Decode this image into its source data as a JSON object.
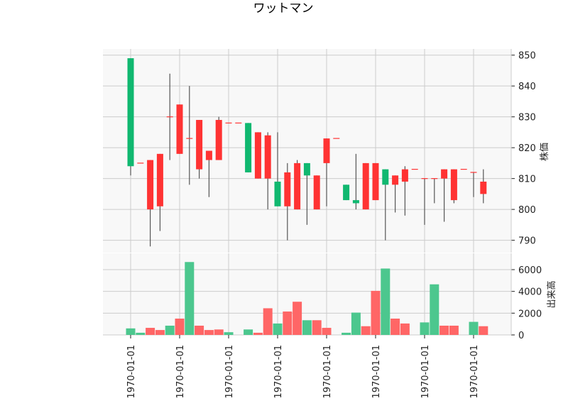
{
  "chart_data": {
    "type": "candlestick",
    "title": "ワットマン",
    "price_panel": {
      "ylabel": "株価",
      "ylim": [
        786,
        852
      ],
      "yticks": [
        790,
        800,
        810,
        820,
        830,
        840,
        850
      ]
    },
    "volume_panel": {
      "ylabel": "出来高",
      "ylim": [
        0,
        7500
      ],
      "yticks": [
        0,
        2000,
        4000,
        6000
      ]
    },
    "xtick_labels": [
      "1970-01-01",
      "1970-01-01",
      "1970-01-01",
      "1970-01-01",
      "1970-01-01",
      "1970-01-01",
      "1970-01-01",
      "1970-01-01"
    ],
    "xtick_positions": [
      0,
      5,
      10,
      15,
      20,
      25,
      30,
      35
    ],
    "grid": true,
    "colors": {
      "up": "#10b870",
      "down": "#ff3333",
      "volume_up": "#4cc78e",
      "volume_down": "#ff6666",
      "wick": "#555555",
      "panel_bg": "#f8f8f8",
      "grid": "#cccccc"
    },
    "candles": [
      {
        "open": 814,
        "high": 849,
        "low": 811,
        "close": 849,
        "volume": 600
      },
      {
        "open": 815,
        "high": 815,
        "low": 815,
        "close": 815,
        "volume": 200
      },
      {
        "open": 816,
        "high": 816,
        "low": 788,
        "close": 800,
        "volume": 650
      },
      {
        "open": 818,
        "high": 818,
        "low": 793,
        "close": 801,
        "volume": 450
      },
      {
        "open": 830,
        "high": 844,
        "low": 816,
        "close": 830,
        "volume": 850
      },
      {
        "open": 834,
        "high": 834,
        "low": 818,
        "close": 818,
        "volume": 1500
      },
      {
        "open": 823,
        "high": 840,
        "low": 808,
        "close": 823,
        "volume": 6700
      },
      {
        "open": 829,
        "high": 829,
        "low": 810,
        "close": 813,
        "volume": 850
      },
      {
        "open": 819,
        "high": 819,
        "low": 804,
        "close": 816,
        "volume": 450
      },
      {
        "open": 829,
        "high": 830,
        "low": 816,
        "close": 816,
        "volume": 500
      },
      {
        "open": 828,
        "high": 828,
        "low": 828,
        "close": 828,
        "volume": 250
      },
      {
        "open": 828,
        "high": 828,
        "low": 828,
        "close": 828,
        "volume": 0
      },
      {
        "open": 812,
        "high": 828,
        "low": 812,
        "close": 828,
        "volume": 500
      },
      {
        "open": 825,
        "high": 825,
        "low": 810,
        "close": 810,
        "volume": 200
      },
      {
        "open": 824,
        "high": 825,
        "low": 800,
        "close": 810,
        "volume": 2450
      },
      {
        "open": 801,
        "high": 825,
        "low": 801,
        "close": 809,
        "volume": 1050
      },
      {
        "open": 812,
        "high": 815,
        "low": 790,
        "close": 801,
        "volume": 2150
      },
      {
        "open": 815,
        "high": 816,
        "low": 800,
        "close": 800,
        "volume": 3050
      },
      {
        "open": 811,
        "high": 815,
        "low": 795,
        "close": 815,
        "volume": 1350
      },
      {
        "open": 811,
        "high": 811,
        "low": 800,
        "close": 800,
        "volume": 1350
      },
      {
        "open": 823,
        "high": 823,
        "low": 801,
        "close": 815,
        "volume": 650
      },
      {
        "open": 823,
        "high": 823,
        "low": 823,
        "close": 823,
        "volume": 0
      },
      {
        "open": 803,
        "high": 808,
        "low": 803,
        "close": 808,
        "volume": 200
      },
      {
        "open": 802,
        "high": 818,
        "low": 800,
        "close": 803,
        "volume": 2050
      },
      {
        "open": 815,
        "high": 815,
        "low": 800,
        "close": 800,
        "volume": 800
      },
      {
        "open": 815,
        "high": 815,
        "low": 803,
        "close": 803,
        "volume": 4050
      },
      {
        "open": 808,
        "high": 813,
        "low": 790,
        "close": 813,
        "volume": 6100
      },
      {
        "open": 811,
        "high": 811,
        "low": 799,
        "close": 808,
        "volume": 1500
      },
      {
        "open": 813,
        "high": 814,
        "low": 798,
        "close": 809,
        "volume": 1050
      },
      {
        "open": 813,
        "high": 813,
        "low": 813,
        "close": 813,
        "volume": 0
      },
      {
        "open": 810,
        "high": 810,
        "low": 795,
        "close": 810,
        "volume": 1150
      },
      {
        "open": 810,
        "high": 810,
        "low": 802,
        "close": 810,
        "volume": 4650
      },
      {
        "open": 813,
        "high": 813,
        "low": 796,
        "close": 810,
        "volume": 850
      },
      {
        "open": 813,
        "high": 813,
        "low": 802,
        "close": 803,
        "volume": 850
      },
      {
        "open": 813,
        "high": 813,
        "low": 813,
        "close": 813,
        "volume": 0
      },
      {
        "open": 812,
        "high": 812,
        "low": 804,
        "close": 812,
        "volume": 1200
      },
      {
        "open": 809,
        "high": 813,
        "low": 802,
        "close": 805,
        "volume": 800
      }
    ]
  }
}
